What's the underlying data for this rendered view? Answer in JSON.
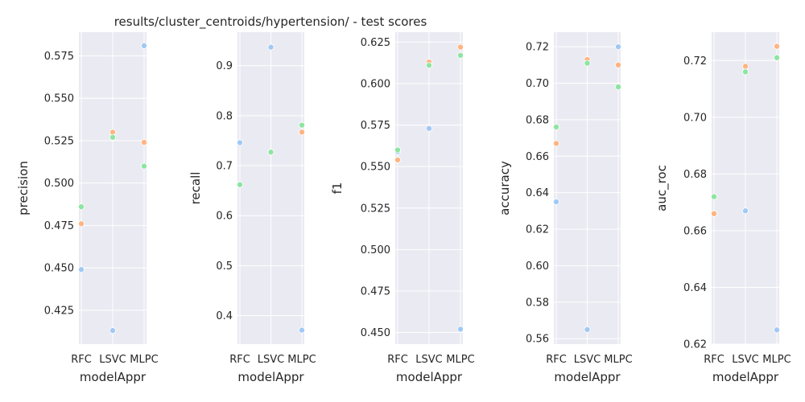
{
  "figure": {
    "title": "results/cluster_centroids/hypertension/ - test scores",
    "colors": {
      "panel_bg": "#eaeaf2",
      "grid": "#ffffff",
      "series": [
        "#a1c9f4",
        "#ffb482",
        "#8de5a1"
      ]
    }
  },
  "chart_data": [
    {
      "type": "scatter",
      "categories": [
        "RFC",
        "LSVC",
        "MLPC"
      ],
      "xlabel": "modelAppr",
      "ylabel": "precision",
      "ylim": [
        0.405,
        0.589
      ],
      "yticks": [
        0.425,
        0.45,
        0.475,
        0.5,
        0.525,
        0.55,
        0.575
      ],
      "ytick_labels": [
        "0.425",
        "0.450",
        "0.475",
        "0.500",
        "0.525",
        "0.550",
        "0.575"
      ],
      "series": [
        {
          "values": [
            0.449,
            0.413,
            0.581
          ]
        },
        {
          "values": [
            0.476,
            0.53,
            0.524
          ]
        },
        {
          "values": [
            0.486,
            0.527,
            0.51
          ]
        }
      ]
    },
    {
      "type": "scatter",
      "categories": [
        "RFC",
        "LSVC",
        "MLPC"
      ],
      "xlabel": "modelAppr",
      "ylabel": "recall",
      "ylim": [
        0.343,
        0.967
      ],
      "yticks": [
        0.4,
        0.5,
        0.6,
        0.7,
        0.8,
        0.9
      ],
      "ytick_labels": [
        "0.4",
        "0.5",
        "0.6",
        "0.7",
        "0.8",
        "0.9"
      ],
      "series": [
        {
          "values": [
            0.746,
            0.937,
            0.371
          ]
        },
        {
          "values": [
            0.662,
            0.727,
            0.767
          ]
        },
        {
          "values": [
            0.662,
            0.727,
            0.781
          ]
        }
      ]
    },
    {
      "type": "scatter",
      "categories": [
        "RFC",
        "LSVC",
        "MLPC"
      ],
      "xlabel": "modelAppr",
      "ylabel": "f1",
      "ylim": [
        0.443,
        0.631
      ],
      "yticks": [
        0.45,
        0.475,
        0.5,
        0.525,
        0.55,
        0.575,
        0.6,
        0.625
      ],
      "ytick_labels": [
        "0.450",
        "0.475",
        "0.500",
        "0.525",
        "0.550",
        "0.575",
        "0.600",
        "0.625"
      ],
      "series": [
        {
          "values": [
            0.559,
            0.573,
            0.452
          ]
        },
        {
          "values": [
            0.554,
            0.613,
            0.622
          ]
        },
        {
          "values": [
            0.56,
            0.611,
            0.617
          ]
        }
      ]
    },
    {
      "type": "scatter",
      "categories": [
        "RFC",
        "LSVC",
        "MLPC"
      ],
      "xlabel": "modelAppr",
      "ylabel": "accuracy",
      "ylim": [
        0.557,
        0.728
      ],
      "yticks": [
        0.56,
        0.58,
        0.6,
        0.62,
        0.64,
        0.66,
        0.68,
        0.7,
        0.72
      ],
      "ytick_labels": [
        "0.56",
        "0.58",
        "0.60",
        "0.62",
        "0.64",
        "0.66",
        "0.68",
        "0.70",
        "0.72"
      ],
      "series": [
        {
          "values": [
            0.635,
            0.565,
            0.72
          ]
        },
        {
          "values": [
            0.667,
            0.713,
            0.71
          ]
        },
        {
          "values": [
            0.676,
            0.711,
            0.698
          ]
        }
      ]
    },
    {
      "type": "scatter",
      "categories": [
        "RFC",
        "LSVC",
        "MLPC"
      ],
      "xlabel": "modelAppr",
      "ylabel": "auc_roc",
      "ylim": [
        0.62,
        0.73
      ],
      "yticks": [
        0.62,
        0.64,
        0.66,
        0.68,
        0.7,
        0.72
      ],
      "ytick_labels": [
        "0.62",
        "0.64",
        "0.66",
        "0.68",
        "0.70",
        "0.72"
      ],
      "series": [
        {
          "values": [
            0.666,
            0.667,
            0.625
          ]
        },
        {
          "values": [
            0.666,
            0.718,
            0.725
          ]
        },
        {
          "values": [
            0.672,
            0.716,
            0.721
          ]
        }
      ]
    }
  ]
}
